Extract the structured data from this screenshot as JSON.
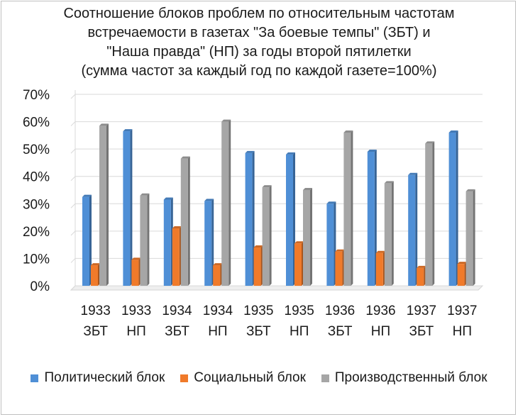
{
  "chart_data": {
    "type": "bar",
    "title_lines": [
      "Соотношение блоков проблем по относительным частотам",
      "встречаемости в газетах \"За боевые темпы\" (ЗБТ) и",
      "\"Наша правда\" (НП) за годы второй пятилетки",
      "(сумма частот за каждый год по каждой газете=100%)"
    ],
    "categories": [
      [
        "1933",
        "ЗБТ"
      ],
      [
        "1933",
        "НП"
      ],
      [
        "1934",
        "ЗБТ"
      ],
      [
        "1934",
        "НП"
      ],
      [
        "1935",
        "ЗБТ"
      ],
      [
        "1935",
        "НП"
      ],
      [
        "1936",
        "ЗБТ"
      ],
      [
        "1936",
        "НП"
      ],
      [
        "1937",
        "ЗБТ"
      ],
      [
        "1937",
        "НП"
      ]
    ],
    "series": [
      {
        "name": "Политический блок",
        "color": "#4f8fd6",
        "values": [
          32.5,
          56.5,
          31.5,
          31,
          48.5,
          48,
          30,
          49,
          40.5,
          56
        ]
      },
      {
        "name": "Социальный блок",
        "color": "#f07a2a",
        "values": [
          7.5,
          9.5,
          21,
          7.5,
          14,
          15.5,
          12.5,
          12,
          6.5,
          8
        ]
      },
      {
        "name": "Производственный блок",
        "color": "#a6a6a6",
        "values": [
          58.5,
          33,
          46.5,
          60,
          36,
          35,
          56,
          37.5,
          52,
          34.5
        ]
      }
    ],
    "y_ticks": [
      "0%",
      "10%",
      "20%",
      "30%",
      "40%",
      "50%",
      "60%",
      "70%"
    ],
    "ylim": [
      0,
      70
    ],
    "grid": true,
    "legend_position": "bottom"
  }
}
